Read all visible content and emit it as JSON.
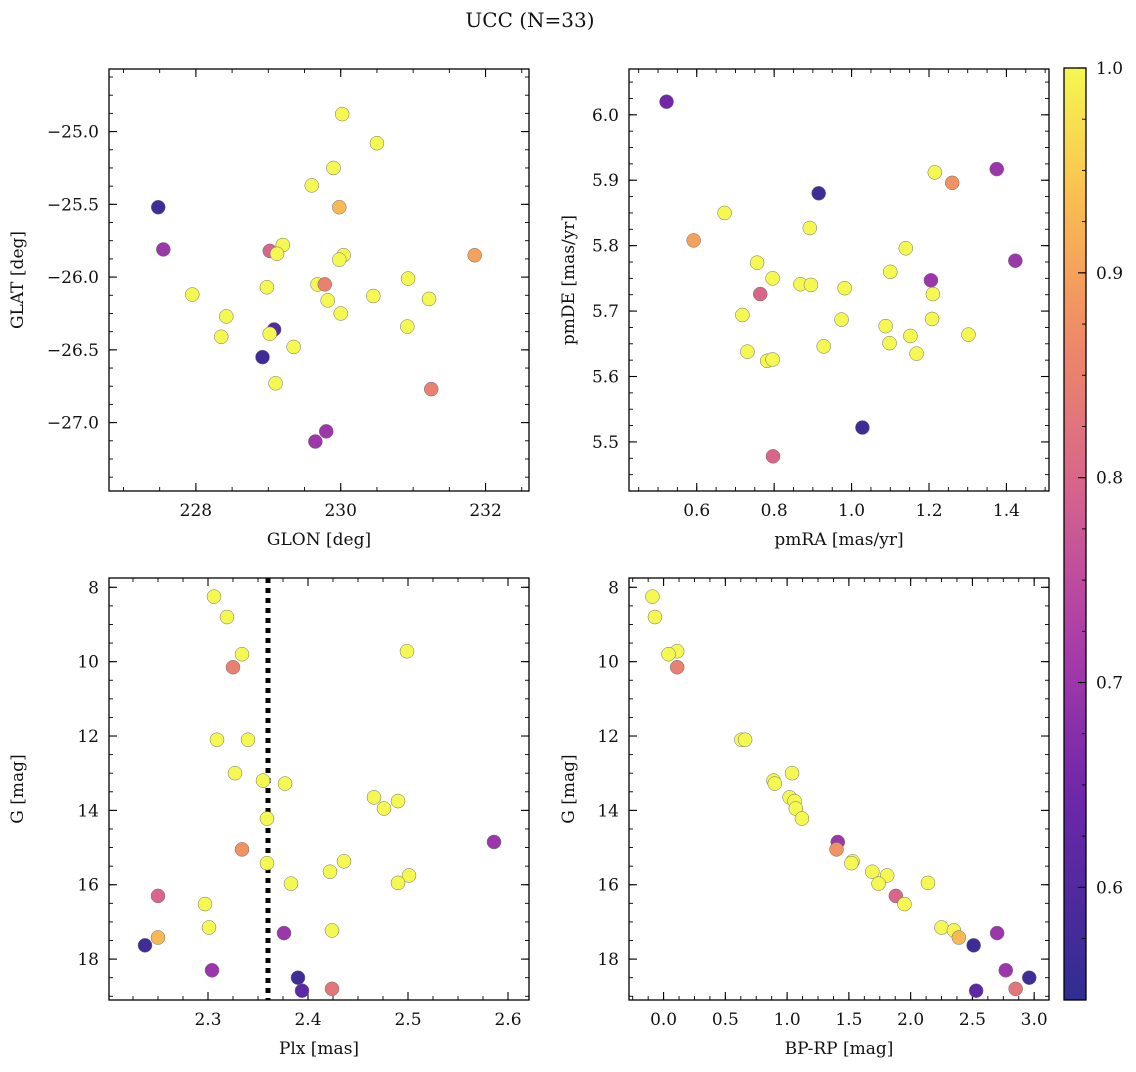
{
  "figure": {
    "title": "UCC (N=33)"
  },
  "colorbar": {
    "min": 0.545,
    "max": 1.0,
    "ticks": [
      "0.6",
      "0.7",
      "0.8",
      "0.9",
      "1.0"
    ],
    "tick_values": [
      0.6,
      0.7,
      0.8,
      0.9,
      1.0
    ],
    "colormap": "plasma (dark blue to purple, pink, orange, yellow)"
  },
  "chart_data": [
    {
      "type": "scatter",
      "id": "glon-glat",
      "xlabel": "GLON [deg]",
      "ylabel": "GLAT [deg]",
      "xlim": [
        226.8,
        232.6
      ],
      "ylim": [
        -27.47,
        -24.57
      ],
      "y_inverted": false,
      "xticks": [
        228,
        230,
        232
      ],
      "xtick_labels": [
        "228",
        "230",
        "232"
      ],
      "yticks": [
        -27.0,
        -26.5,
        -26.0,
        -25.5,
        -25.0
      ],
      "ytick_labels": [
        "−27.0",
        "−26.5",
        "−26.0",
        "−25.5",
        "−25.0"
      ],
      "points": [
        [
          230.02,
          -24.88,
          1.0
        ],
        [
          230.5,
          -25.08,
          1.0
        ],
        [
          229.9,
          -25.25,
          1.0
        ],
        [
          229.6,
          -25.37,
          1.0
        ],
        [
          229.98,
          -25.52,
          0.93
        ],
        [
          227.48,
          -25.52,
          0.57
        ],
        [
          227.55,
          -25.81,
          0.7
        ],
        [
          229.2,
          -25.78,
          1.0
        ],
        [
          229.02,
          -25.82,
          0.8
        ],
        [
          229.12,
          -25.84,
          1.0
        ],
        [
          230.04,
          -25.85,
          1.0
        ],
        [
          229.98,
          -25.88,
          1.0
        ],
        [
          231.85,
          -25.85,
          0.9
        ],
        [
          229.68,
          -26.05,
          1.0
        ],
        [
          229.78,
          -26.05,
          0.85
        ],
        [
          230.93,
          -26.01,
          1.0
        ],
        [
          227.95,
          -26.12,
          1.0
        ],
        [
          228.98,
          -26.07,
          1.0
        ],
        [
          230.45,
          -26.13,
          1.0
        ],
        [
          229.82,
          -26.16,
          1.0
        ],
        [
          231.22,
          -26.15,
          1.0
        ],
        [
          230.0,
          -26.25,
          1.0
        ],
        [
          228.42,
          -26.27,
          1.0
        ],
        [
          229.08,
          -26.36,
          0.6
        ],
        [
          229.02,
          -26.39,
          1.0
        ],
        [
          228.35,
          -26.41,
          1.0
        ],
        [
          230.92,
          -26.34,
          1.0
        ],
        [
          229.35,
          -26.48,
          1.0
        ],
        [
          228.92,
          -26.55,
          0.57
        ],
        [
          229.1,
          -26.73,
          1.0
        ],
        [
          231.25,
          -26.77,
          0.85
        ],
        [
          229.8,
          -27.06,
          0.7
        ],
        [
          229.65,
          -27.13,
          0.7
        ]
      ]
    },
    {
      "type": "scatter",
      "id": "pmra-pmde",
      "xlabel": "pmRA [mas/yr]",
      "ylabel": "pmDE [mas/yr]",
      "xlim": [
        0.425,
        1.51
      ],
      "ylim": [
        5.425,
        6.07
      ],
      "y_inverted": false,
      "xticks": [
        0.6,
        0.8,
        1.0,
        1.2,
        1.4
      ],
      "xtick_labels": [
        "0.6",
        "0.8",
        "1.0",
        "1.2",
        "1.4"
      ],
      "yticks": [
        5.5,
        5.6,
        5.7,
        5.8,
        5.9,
        6.0
      ],
      "ytick_labels": [
        "5.5",
        "5.6",
        "5.7",
        "5.8",
        "5.9",
        "6.0"
      ],
      "points": [
        [
          0.522,
          6.02,
          0.65
        ],
        [
          0.915,
          5.88,
          0.57
        ],
        [
          1.375,
          5.917,
          0.7
        ],
        [
          1.215,
          5.912,
          1.0
        ],
        [
          1.26,
          5.896,
          0.88
        ],
        [
          0.672,
          5.85,
          1.0
        ],
        [
          0.892,
          5.827,
          1.0
        ],
        [
          0.592,
          5.808,
          0.9
        ],
        [
          1.14,
          5.796,
          1.0
        ],
        [
          0.756,
          5.774,
          1.0
        ],
        [
          1.423,
          5.777,
          0.7
        ],
        [
          1.1,
          5.76,
          1.0
        ],
        [
          0.796,
          5.75,
          1.0
        ],
        [
          1.205,
          5.747,
          0.7
        ],
        [
          0.868,
          5.741,
          1.0
        ],
        [
          0.895,
          5.74,
          1.0
        ],
        [
          0.982,
          5.735,
          1.0
        ],
        [
          0.764,
          5.726,
          0.8
        ],
        [
          1.21,
          5.726,
          1.0
        ],
        [
          0.718,
          5.694,
          1.0
        ],
        [
          0.974,
          5.687,
          1.0
        ],
        [
          1.208,
          5.688,
          1.0
        ],
        [
          1.088,
          5.677,
          1.0
        ],
        [
          1.152,
          5.662,
          1.0
        ],
        [
          1.302,
          5.664,
          1.0
        ],
        [
          1.098,
          5.651,
          1.0
        ],
        [
          0.928,
          5.646,
          1.0
        ],
        [
          0.731,
          5.638,
          1.0
        ],
        [
          1.168,
          5.635,
          1.0
        ],
        [
          0.782,
          5.624,
          1.0
        ],
        [
          0.796,
          5.626,
          1.0
        ],
        [
          1.028,
          5.522,
          0.57
        ],
        [
          0.797,
          5.478,
          0.8
        ]
      ]
    },
    {
      "type": "scatter",
      "id": "plx-g",
      "xlabel": "Plx [mas]",
      "ylabel": "G [mag]",
      "xlim": [
        2.201,
        2.621
      ],
      "ylim": [
        19.1,
        7.75
      ],
      "y_inverted": true,
      "vline": 2.36,
      "vline_style": "dotted black",
      "xticks": [
        2.3,
        2.4,
        2.5,
        2.6
      ],
      "xtick_labels": [
        "2.3",
        "2.4",
        "2.5",
        "2.6"
      ],
      "yticks": [
        8,
        10,
        12,
        14,
        16,
        18
      ],
      "ytick_labels": [
        "8",
        "10",
        "12",
        "14",
        "16",
        "18"
      ],
      "points": [
        [
          2.306,
          8.25,
          1.0
        ],
        [
          2.319,
          8.8,
          1.0
        ],
        [
          2.334,
          9.8,
          1.0
        ],
        [
          2.499,
          9.72,
          1.0
        ],
        [
          2.325,
          10.15,
          0.85
        ],
        [
          2.309,
          12.1,
          1.0
        ],
        [
          2.34,
          12.1,
          1.0
        ],
        [
          2.327,
          13.0,
          1.0
        ],
        [
          2.355,
          13.2,
          1.0
        ],
        [
          2.377,
          13.28,
          1.0
        ],
        [
          2.466,
          13.65,
          1.0
        ],
        [
          2.49,
          13.75,
          1.0
        ],
        [
          2.476,
          13.95,
          1.0
        ],
        [
          2.359,
          14.22,
          1.0
        ],
        [
          2.586,
          14.85,
          0.7
        ],
        [
          2.334,
          15.05,
          0.88
        ],
        [
          2.359,
          15.42,
          1.0
        ],
        [
          2.436,
          15.37,
          1.0
        ],
        [
          2.422,
          15.65,
          1.0
        ],
        [
          2.501,
          15.75,
          1.0
        ],
        [
          2.383,
          15.97,
          1.0
        ],
        [
          2.49,
          15.95,
          1.0
        ],
        [
          2.25,
          16.3,
          0.8
        ],
        [
          2.297,
          16.52,
          1.0
        ],
        [
          2.301,
          17.15,
          1.0
        ],
        [
          2.424,
          17.23,
          1.0
        ],
        [
          2.376,
          17.3,
          0.7
        ],
        [
          2.25,
          17.42,
          0.93
        ],
        [
          2.237,
          17.63,
          0.57
        ],
        [
          2.304,
          18.3,
          0.7
        ],
        [
          2.39,
          18.5,
          0.57
        ],
        [
          2.424,
          18.8,
          0.83
        ],
        [
          2.394,
          18.85,
          0.62
        ]
      ]
    },
    {
      "type": "scatter",
      "id": "bprp-g",
      "xlabel": "BP-RP [mag]",
      "ylabel": "G [mag]",
      "xlim": [
        -0.28,
        3.12
      ],
      "ylim": [
        19.1,
        7.75
      ],
      "y_inverted": true,
      "xticks": [
        0.0,
        0.5,
        1.0,
        1.5,
        2.0,
        2.5,
        3.0
      ],
      "xtick_labels": [
        "0.0",
        "0.5",
        "1.0",
        "1.5",
        "2.0",
        "2.5",
        "3.0"
      ],
      "yticks": [
        8,
        10,
        12,
        14,
        16,
        18
      ],
      "ytick_labels": [
        "8",
        "10",
        "12",
        "14",
        "16",
        "18"
      ],
      "points": [
        [
          -0.09,
          8.25,
          1.0
        ],
        [
          -0.07,
          8.8,
          1.0
        ],
        [
          0.11,
          9.72,
          1.0
        ],
        [
          0.04,
          9.8,
          1.0
        ],
        [
          0.11,
          10.15,
          0.85
        ],
        [
          0.63,
          12.1,
          1.0
        ],
        [
          0.66,
          12.1,
          1.0
        ],
        [
          1.04,
          13.0,
          1.0
        ],
        [
          0.89,
          13.2,
          1.0
        ],
        [
          0.9,
          13.28,
          1.0
        ],
        [
          1.02,
          13.65,
          1.0
        ],
        [
          1.06,
          13.75,
          1.0
        ],
        [
          1.07,
          13.95,
          1.0
        ],
        [
          1.12,
          14.22,
          1.0
        ],
        [
          1.41,
          14.85,
          0.7
        ],
        [
          1.4,
          15.05,
          0.88
        ],
        [
          1.53,
          15.37,
          1.0
        ],
        [
          1.52,
          15.42,
          1.0
        ],
        [
          1.69,
          15.65,
          1.0
        ],
        [
          1.81,
          15.75,
          1.0
        ],
        [
          1.74,
          15.97,
          1.0
        ],
        [
          2.14,
          15.95,
          1.0
        ],
        [
          1.88,
          16.3,
          0.8
        ],
        [
          1.95,
          16.52,
          1.0
        ],
        [
          2.25,
          17.15,
          1.0
        ],
        [
          2.35,
          17.23,
          1.0
        ],
        [
          2.7,
          17.3,
          0.7
        ],
        [
          2.39,
          17.42,
          0.93
        ],
        [
          2.51,
          17.63,
          0.57
        ],
        [
          2.77,
          18.3,
          0.7
        ],
        [
          2.96,
          18.5,
          0.57
        ],
        [
          2.85,
          18.8,
          0.83
        ],
        [
          2.53,
          18.85,
          0.62
        ]
      ]
    }
  ]
}
